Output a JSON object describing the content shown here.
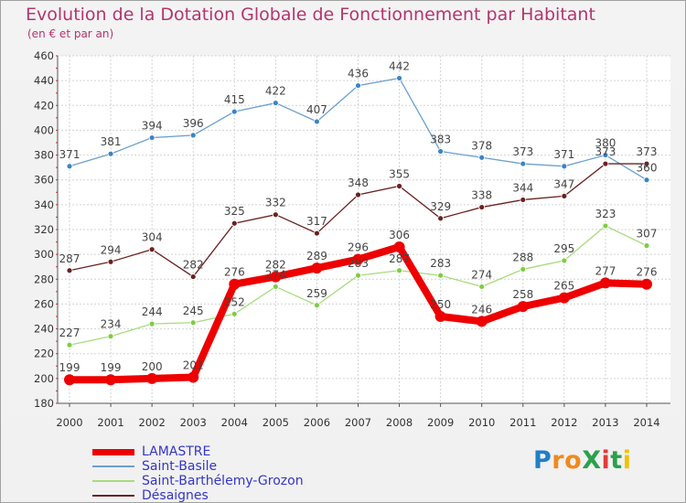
{
  "title": "Evolution de la Dotation Globale de Fonctionnement par Habitant",
  "subtitle": "(en € et par an)",
  "logo_text": "ProXiti",
  "colors": {
    "title": "#b4346e",
    "axis": "#555555",
    "grid": "#d3d3d3",
    "legend_text": "#3535c8"
  },
  "chart_data": {
    "type": "line",
    "x": [
      2000,
      2001,
      2002,
      2003,
      2004,
      2005,
      2006,
      2007,
      2008,
      2009,
      2010,
      2011,
      2012,
      2013,
      2014
    ],
    "y_ticks": [
      180,
      200,
      220,
      240,
      260,
      280,
      300,
      320,
      340,
      360,
      380,
      400,
      420,
      440,
      460
    ],
    "ylim": [
      180,
      460
    ],
    "grid": true,
    "legend_position": "bottom-left",
    "series": [
      {
        "name": "LAMASTRE",
        "color": "#ee0000",
        "values": [
          199,
          199,
          200,
          201,
          276,
          282,
          289,
          296,
          306,
          250,
          246,
          258,
          265,
          277,
          276
        ],
        "highlight": true
      },
      {
        "name": "Saint-Basile",
        "color": "#6aa0d0",
        "marker": "#3c84c4",
        "values": [
          371,
          381,
          394,
          396,
          415,
          422,
          407,
          436,
          442,
          383,
          378,
          373,
          371,
          380,
          360
        ]
      },
      {
        "name": "Saint-Barthélemy-Grozon",
        "color": "#a6dc7a",
        "marker": "#7fcc44",
        "values": [
          227,
          234,
          244,
          245,
          252,
          274,
          259,
          283,
          287,
          283,
          274,
          288,
          295,
          323,
          307
        ]
      },
      {
        "name": "Désaignes",
        "color": "#6b2020",
        "marker": "#6b2020",
        "values": [
          287,
          294,
          304,
          282,
          325,
          332,
          317,
          348,
          355,
          329,
          338,
          344,
          347,
          373,
          373
        ]
      }
    ]
  }
}
